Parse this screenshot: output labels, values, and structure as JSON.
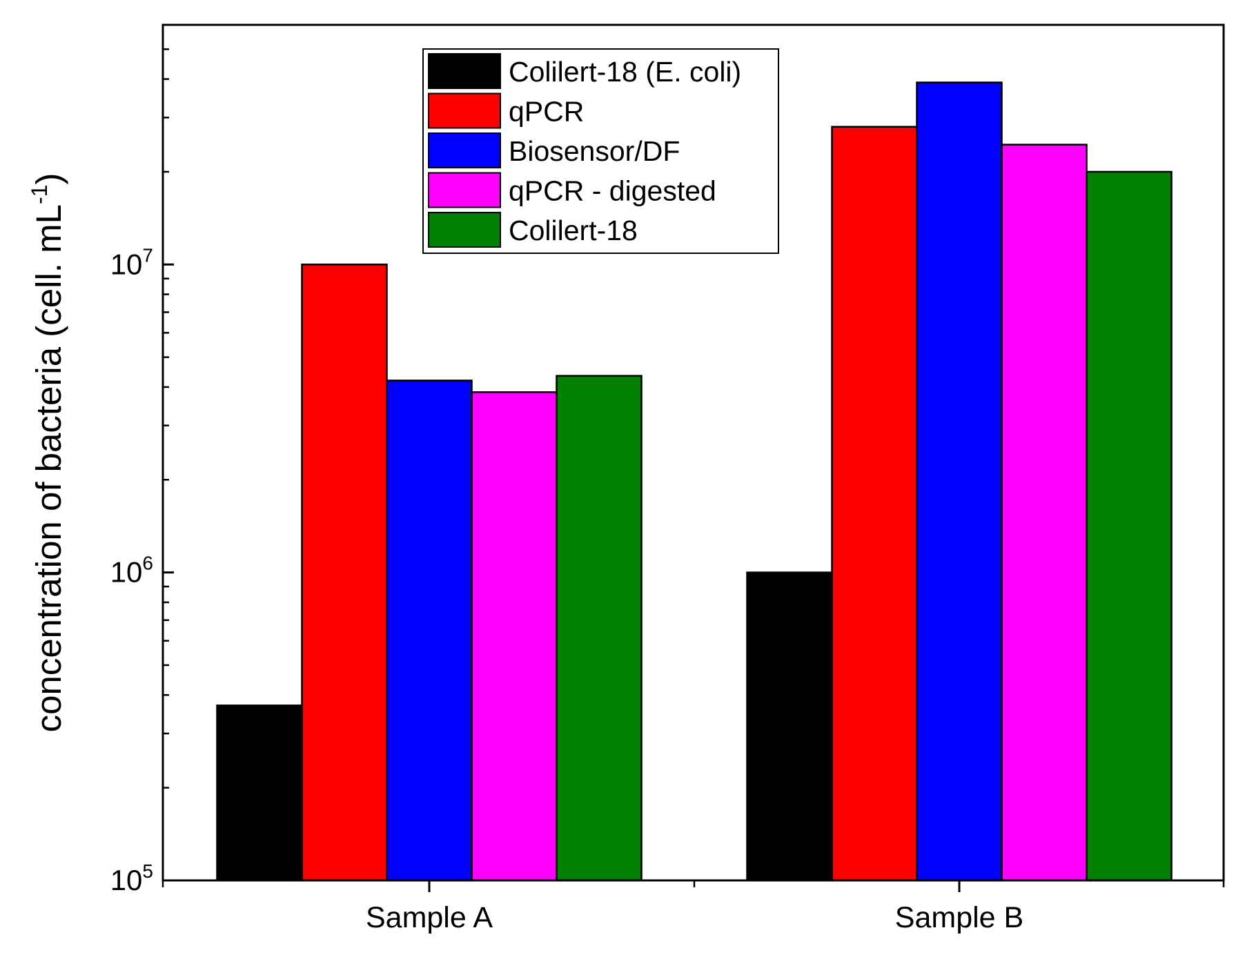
{
  "chart_data": {
    "type": "bar",
    "title": "",
    "xlabel": "",
    "ylabel": "concentration of bacteria (cell. mL",
    "ylabel_superscript": "-1",
    "ylabel_close": ")",
    "yscale": "log",
    "ylim": [
      100000,
      60000000
    ],
    "yticks": [
      {
        "value": 100000,
        "base": "10",
        "exp": "5"
      },
      {
        "value": 1000000,
        "base": "10",
        "exp": "6"
      },
      {
        "value": 10000000,
        "base": "10",
        "exp": "7"
      }
    ],
    "categories": [
      "Sample A",
      "Sample B"
    ],
    "series": [
      {
        "name": "Colilert-18 (E. coli)",
        "color": "#000000",
        "values": [
          370000,
          1000000
        ]
      },
      {
        "name": "qPCR",
        "color": "#ff0000",
        "values": [
          10000000,
          28000000
        ]
      },
      {
        "name": "Biosensor/DF",
        "color": "#0000ff",
        "values": [
          4200000,
          39000000
        ]
      },
      {
        "name": "qPCR - digested",
        "color": "#ff00ff",
        "values": [
          3850000,
          24500000
        ]
      },
      {
        "name": "Colilert-18",
        "color": "#007f00",
        "values": [
          4350000,
          20000000
        ]
      }
    ],
    "legend_position": "top-center",
    "grid": false
  }
}
